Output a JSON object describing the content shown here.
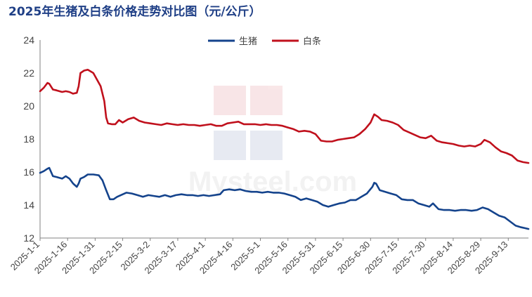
{
  "chart_data": {
    "type": "line",
    "title": "2025年生猪及白条价格走势对比图（元/公斤）",
    "xlabel": "",
    "ylabel": "",
    "ylim": [
      12,
      24
    ],
    "yticks": [
      12,
      14,
      16,
      18,
      20,
      22,
      24
    ],
    "xtick_labels": [
      "2025-1-1",
      "2025-1-16",
      "2025-1-31",
      "2025-2-15",
      "2025-3-2",
      "2025-3-17",
      "2025-4-1",
      "2025-4-16",
      "2025-5-1",
      "2025-5-16",
      "2025-5-31",
      "2025-6-15",
      "2025-6-30",
      "2025-7-15",
      "2025-7-30",
      "2025-8-14",
      "2025-8-29",
      "2025-9-13"
    ],
    "legend_position": "top-center",
    "grid": false,
    "watermark": "我的钢铁 Mysteel.com",
    "series": [
      {
        "name": "生猪",
        "color": "#14438c",
        "points": [
          [
            "2025-01-01",
            15.95
          ],
          [
            "2025-01-03",
            16.05
          ],
          [
            "2025-01-05",
            16.2
          ],
          [
            "2025-01-06",
            16.25
          ],
          [
            "2025-01-08",
            15.75
          ],
          [
            "2025-01-10",
            15.7
          ],
          [
            "2025-01-13",
            15.6
          ],
          [
            "2025-01-15",
            15.75
          ],
          [
            "2025-01-17",
            15.6
          ],
          [
            "2025-01-19",
            15.3
          ],
          [
            "2025-01-21",
            15.1
          ],
          [
            "2025-01-22",
            15.3
          ],
          [
            "2025-01-23",
            15.6
          ],
          [
            "2025-01-25",
            15.7
          ],
          [
            "2025-01-27",
            15.85
          ],
          [
            "2025-01-30",
            15.85
          ],
          [
            "2025-02-02",
            15.8
          ],
          [
            "2025-02-04",
            15.5
          ],
          [
            "2025-02-06",
            14.9
          ],
          [
            "2025-02-08",
            14.35
          ],
          [
            "2025-02-10",
            14.35
          ],
          [
            "2025-02-12",
            14.5
          ],
          [
            "2025-02-14",
            14.6
          ],
          [
            "2025-02-17",
            14.75
          ],
          [
            "2025-02-20",
            14.7
          ],
          [
            "2025-02-23",
            14.6
          ],
          [
            "2025-02-26",
            14.5
          ],
          [
            "2025-03-01",
            14.6
          ],
          [
            "2025-03-04",
            14.55
          ],
          [
            "2025-03-07",
            14.5
          ],
          [
            "2025-03-10",
            14.6
          ],
          [
            "2025-03-13",
            14.5
          ],
          [
            "2025-03-16",
            14.6
          ],
          [
            "2025-03-19",
            14.65
          ],
          [
            "2025-03-22",
            14.6
          ],
          [
            "2025-03-25",
            14.6
          ],
          [
            "2025-03-28",
            14.55
          ],
          [
            "2025-03-31",
            14.6
          ],
          [
            "2025-04-03",
            14.55
          ],
          [
            "2025-04-06",
            14.6
          ],
          [
            "2025-04-09",
            14.65
          ],
          [
            "2025-04-11",
            14.9
          ],
          [
            "2025-04-14",
            14.95
          ],
          [
            "2025-04-17",
            14.9
          ],
          [
            "2025-04-20",
            14.95
          ],
          [
            "2025-04-23",
            14.85
          ],
          [
            "2025-04-26",
            14.8
          ],
          [
            "2025-04-29",
            14.8
          ],
          [
            "2025-05-02",
            14.75
          ],
          [
            "2025-05-05",
            14.8
          ],
          [
            "2025-05-08",
            14.75
          ],
          [
            "2025-05-11",
            14.75
          ],
          [
            "2025-05-14",
            14.7
          ],
          [
            "2025-05-17",
            14.6
          ],
          [
            "2025-05-20",
            14.5
          ],
          [
            "2025-05-23",
            14.3
          ],
          [
            "2025-05-26",
            14.4
          ],
          [
            "2025-05-29",
            14.3
          ],
          [
            "2025-06-01",
            14.2
          ],
          [
            "2025-06-04",
            14.0
          ],
          [
            "2025-06-07",
            13.9
          ],
          [
            "2025-06-10",
            14.0
          ],
          [
            "2025-06-13",
            14.1
          ],
          [
            "2025-06-16",
            14.15
          ],
          [
            "2025-06-19",
            14.3
          ],
          [
            "2025-06-22",
            14.3
          ],
          [
            "2025-06-25",
            14.5
          ],
          [
            "2025-06-28",
            14.7
          ],
          [
            "2025-07-01",
            15.1
          ],
          [
            "2025-07-02",
            15.35
          ],
          [
            "2025-07-03",
            15.3
          ],
          [
            "2025-07-05",
            14.9
          ],
          [
            "2025-07-08",
            14.8
          ],
          [
            "2025-07-11",
            14.7
          ],
          [
            "2025-07-14",
            14.6
          ],
          [
            "2025-07-17",
            14.35
          ],
          [
            "2025-07-20",
            14.3
          ],
          [
            "2025-07-23",
            14.3
          ],
          [
            "2025-07-26",
            14.1
          ],
          [
            "2025-07-29",
            14.0
          ],
          [
            "2025-08-01",
            13.9
          ],
          [
            "2025-08-03",
            14.1
          ],
          [
            "2025-08-06",
            13.75
          ],
          [
            "2025-08-09",
            13.7
          ],
          [
            "2025-08-12",
            13.7
          ],
          [
            "2025-08-15",
            13.65
          ],
          [
            "2025-08-18",
            13.7
          ],
          [
            "2025-08-21",
            13.7
          ],
          [
            "2025-08-24",
            13.65
          ],
          [
            "2025-08-27",
            13.7
          ],
          [
            "2025-08-30",
            13.85
          ],
          [
            "2025-09-02",
            13.75
          ],
          [
            "2025-09-05",
            13.55
          ],
          [
            "2025-09-08",
            13.35
          ],
          [
            "2025-09-11",
            13.25
          ],
          [
            "2025-09-14",
            13.0
          ],
          [
            "2025-09-17",
            12.75
          ],
          [
            "2025-09-20",
            12.65
          ],
          [
            "2025-09-22",
            12.6
          ],
          [
            "2025-09-24",
            12.55
          ]
        ]
      },
      {
        "name": "白条",
        "color": "#c0101c",
        "points": [
          [
            "2025-01-01",
            20.9
          ],
          [
            "2025-01-03",
            21.1
          ],
          [
            "2025-01-05",
            21.4
          ],
          [
            "2025-01-06",
            21.35
          ],
          [
            "2025-01-08",
            21.0
          ],
          [
            "2025-01-10",
            20.95
          ],
          [
            "2025-01-13",
            20.85
          ],
          [
            "2025-01-15",
            20.9
          ],
          [
            "2025-01-17",
            20.85
          ],
          [
            "2025-01-19",
            20.75
          ],
          [
            "2025-01-21",
            20.8
          ],
          [
            "2025-01-22",
            21.2
          ],
          [
            "2025-01-23",
            22.0
          ],
          [
            "2025-01-25",
            22.15
          ],
          [
            "2025-01-27",
            22.2
          ],
          [
            "2025-01-30",
            22.0
          ],
          [
            "2025-02-01",
            21.6
          ],
          [
            "2025-02-03",
            21.2
          ],
          [
            "2025-02-05",
            20.3
          ],
          [
            "2025-02-06",
            19.3
          ],
          [
            "2025-02-07",
            18.95
          ],
          [
            "2025-02-09",
            18.9
          ],
          [
            "2025-02-11",
            18.9
          ],
          [
            "2025-02-13",
            19.15
          ],
          [
            "2025-02-15",
            19.0
          ],
          [
            "2025-02-18",
            19.2
          ],
          [
            "2025-02-21",
            19.3
          ],
          [
            "2025-02-24",
            19.1
          ],
          [
            "2025-02-27",
            19.0
          ],
          [
            "2025-03-02",
            18.95
          ],
          [
            "2025-03-05",
            18.9
          ],
          [
            "2025-03-08",
            18.85
          ],
          [
            "2025-03-11",
            18.95
          ],
          [
            "2025-03-14",
            18.9
          ],
          [
            "2025-03-17",
            18.85
          ],
          [
            "2025-03-20",
            18.9
          ],
          [
            "2025-03-23",
            18.85
          ],
          [
            "2025-03-26",
            18.85
          ],
          [
            "2025-03-29",
            18.8
          ],
          [
            "2025-04-01",
            18.85
          ],
          [
            "2025-04-04",
            18.9
          ],
          [
            "2025-04-07",
            18.8
          ],
          [
            "2025-04-10",
            18.8
          ],
          [
            "2025-04-13",
            18.95
          ],
          [
            "2025-04-16",
            19.0
          ],
          [
            "2025-04-19",
            19.05
          ],
          [
            "2025-04-22",
            18.9
          ],
          [
            "2025-04-25",
            18.9
          ],
          [
            "2025-04-28",
            18.9
          ],
          [
            "2025-05-01",
            18.85
          ],
          [
            "2025-05-04",
            18.9
          ],
          [
            "2025-05-07",
            18.85
          ],
          [
            "2025-05-10",
            18.85
          ],
          [
            "2025-05-13",
            18.8
          ],
          [
            "2025-05-16",
            18.7
          ],
          [
            "2025-05-19",
            18.6
          ],
          [
            "2025-05-22",
            18.45
          ],
          [
            "2025-05-25",
            18.5
          ],
          [
            "2025-05-28",
            18.45
          ],
          [
            "2025-05-31",
            18.3
          ],
          [
            "2025-06-03",
            17.9
          ],
          [
            "2025-06-06",
            17.85
          ],
          [
            "2025-06-09",
            17.85
          ],
          [
            "2025-06-12",
            17.95
          ],
          [
            "2025-06-15",
            18.0
          ],
          [
            "2025-06-18",
            18.05
          ],
          [
            "2025-06-21",
            18.1
          ],
          [
            "2025-06-24",
            18.3
          ],
          [
            "2025-06-27",
            18.6
          ],
          [
            "2025-06-30",
            19.0
          ],
          [
            "2025-07-02",
            19.5
          ],
          [
            "2025-07-04",
            19.35
          ],
          [
            "2025-07-06",
            19.15
          ],
          [
            "2025-07-09",
            19.1
          ],
          [
            "2025-07-12",
            19.0
          ],
          [
            "2025-07-15",
            18.85
          ],
          [
            "2025-07-18",
            18.55
          ],
          [
            "2025-07-21",
            18.4
          ],
          [
            "2025-07-24",
            18.25
          ],
          [
            "2025-07-27",
            18.1
          ],
          [
            "2025-07-30",
            18.05
          ],
          [
            "2025-08-02",
            18.2
          ],
          [
            "2025-08-05",
            17.9
          ],
          [
            "2025-08-08",
            17.8
          ],
          [
            "2025-08-11",
            17.75
          ],
          [
            "2025-08-14",
            17.7
          ],
          [
            "2025-08-17",
            17.6
          ],
          [
            "2025-08-20",
            17.55
          ],
          [
            "2025-08-23",
            17.6
          ],
          [
            "2025-08-26",
            17.55
          ],
          [
            "2025-08-29",
            17.7
          ],
          [
            "2025-08-31",
            17.95
          ],
          [
            "2025-09-03",
            17.8
          ],
          [
            "2025-09-06",
            17.5
          ],
          [
            "2025-09-09",
            17.25
          ],
          [
            "2025-09-12",
            17.15
          ],
          [
            "2025-09-15",
            17.0
          ],
          [
            "2025-09-18",
            16.7
          ],
          [
            "2025-09-21",
            16.6
          ],
          [
            "2025-09-24",
            16.55
          ]
        ]
      }
    ]
  }
}
